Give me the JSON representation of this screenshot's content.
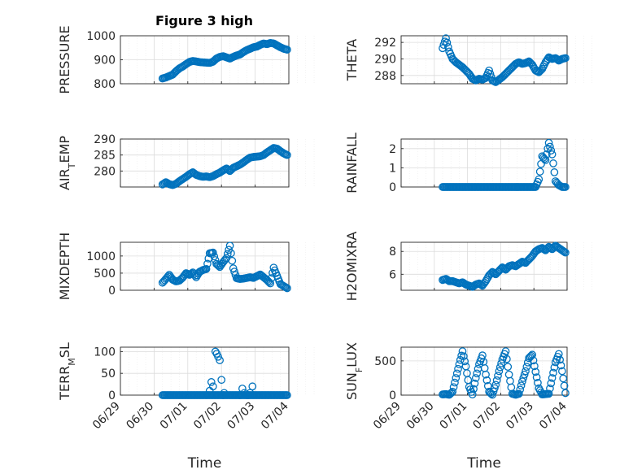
{
  "chart_data": [
    {
      "type": "scatter",
      "title": "Figure 3 high",
      "xlabel": "",
      "ylabel": "PRESSURE",
      "xlim": [
        "06/29",
        "07/04"
      ],
      "ylim": [
        800,
        1000
      ],
      "yticks": [
        "800",
        "900",
        "1000"
      ],
      "xticks": [],
      "grid": true,
      "marker": "circle",
      "color": "#0072BD",
      "x": [
        1.25,
        1.35,
        1.45,
        1.55,
        1.65,
        1.75,
        1.85,
        1.95,
        2.05,
        2.15,
        2.25,
        2.35,
        2.45,
        2.55,
        2.65,
        2.75,
        2.85,
        2.95,
        3.05,
        3.15,
        3.25,
        3.35,
        3.45,
        3.55,
        3.65,
        3.75,
        3.85,
        3.95,
        4.05,
        4.15,
        4.25,
        4.35,
        4.45,
        4.55,
        4.65,
        4.75,
        4.85,
        4.95
      ],
      "y": [
        822,
        826,
        832,
        838,
        852,
        864,
        872,
        882,
        891,
        895,
        893,
        890,
        889,
        888,
        887,
        892,
        905,
        912,
        915,
        910,
        905,
        912,
        918,
        922,
        932,
        940,
        946,
        952,
        955,
        962,
        968,
        965,
        970,
        968,
        960,
        952,
        946,
        942
      ]
    },
    {
      "type": "scatter",
      "title": "",
      "xlabel": "",
      "ylabel": "THETA",
      "xlim": [
        "06/29",
        "07/04"
      ],
      "ylim": [
        287,
        292.8
      ],
      "yticks": [
        "288",
        "290",
        "292"
      ],
      "xticks": [],
      "grid": true,
      "marker": "circle",
      "color": "#0072BD",
      "x": [
        1.25,
        1.35,
        1.45,
        1.55,
        1.65,
        1.75,
        1.85,
        1.95,
        2.05,
        2.15,
        2.25,
        2.35,
        2.45,
        2.55,
        2.65,
        2.75,
        2.85,
        2.95,
        3.05,
        3.15,
        3.25,
        3.35,
        3.45,
        3.55,
        3.65,
        3.75,
        3.85,
        3.95,
        4.05,
        4.15,
        4.25,
        4.35,
        4.45,
        4.55,
        4.65,
        4.75,
        4.85,
        4.95
      ],
      "y": [
        291.3,
        292.5,
        290.9,
        290.0,
        289.6,
        289.3,
        289.0,
        288.6,
        288.2,
        287.6,
        287.4,
        287.6,
        287.5,
        287.7,
        288.6,
        287.4,
        287.2,
        287.5,
        287.8,
        288.2,
        288.6,
        289.0,
        289.4,
        289.6,
        289.4,
        289.5,
        289.7,
        289.3,
        288.6,
        288.4,
        288.8,
        289.6,
        290.2,
        290.0,
        290.1,
        289.8,
        290.0,
        290.1
      ]
    },
    {
      "type": "scatter",
      "title": "",
      "xlabel": "",
      "ylabel": "AIR_TEMP",
      "xlim": [
        "06/29",
        "07/04"
      ],
      "ylim": [
        275,
        290
      ],
      "yticks": [
        "280",
        "285",
        "290"
      ],
      "xticks": [],
      "grid": true,
      "marker": "circle",
      "color": "#0072BD",
      "x": [
        1.25,
        1.35,
        1.45,
        1.55,
        1.65,
        1.75,
        1.85,
        1.95,
        2.05,
        2.15,
        2.25,
        2.35,
        2.45,
        2.55,
        2.65,
        2.75,
        2.85,
        2.95,
        3.05,
        3.15,
        3.25,
        3.35,
        3.45,
        3.55,
        3.65,
        3.75,
        3.85,
        3.95,
        4.05,
        4.15,
        4.25,
        4.35,
        4.45,
        4.55,
        4.65,
        4.75,
        4.85,
        4.95
      ],
      "y": [
        275.8,
        276.5,
        275.9,
        275.6,
        276.0,
        276.8,
        277.5,
        278.2,
        279.0,
        279.6,
        278.8,
        278.4,
        278.2,
        278.3,
        278.1,
        278.4,
        279.0,
        279.5,
        280.2,
        280.8,
        280.0,
        281.0,
        281.5,
        282.0,
        282.7,
        283.5,
        284.2,
        284.4,
        284.5,
        284.6,
        285.0,
        285.8,
        286.5,
        287.2,
        287.0,
        286.2,
        285.5,
        285.0
      ]
    },
    {
      "type": "scatter",
      "title": "",
      "xlabel": "",
      "ylabel": "RAINFALL",
      "xlim": [
        "06/29",
        "07/04"
      ],
      "ylim": [
        0,
        2.5
      ],
      "yticks": [
        "0",
        "1",
        "2"
      ],
      "xticks": [],
      "grid": true,
      "marker": "circle",
      "color": "#0072BD",
      "x": [
        1.25,
        1.35,
        1.45,
        1.55,
        1.65,
        1.75,
        1.85,
        1.95,
        2.05,
        2.15,
        2.25,
        2.35,
        2.45,
        2.55,
        2.65,
        2.75,
        2.85,
        2.95,
        3.05,
        3.15,
        3.25,
        3.35,
        3.45,
        3.55,
        3.65,
        3.75,
        3.85,
        3.95,
        4.05,
        4.15,
        4.25,
        4.35,
        4.45,
        4.55,
        4.65,
        4.75,
        4.85,
        4.95
      ],
      "y": [
        0,
        0,
        0,
        0,
        0,
        0,
        0,
        0,
        0,
        0,
        0,
        0,
        0,
        0,
        0,
        0,
        0,
        0,
        0,
        0,
        0,
        0,
        0,
        0,
        0,
        0,
        0,
        0,
        0,
        0.4,
        1.6,
        1.4,
        2.3,
        1.7,
        0.3,
        0.1,
        0,
        0
      ]
    },
    {
      "type": "scatter",
      "title": "",
      "xlabel": "",
      "ylabel": "MIXDEPTH",
      "xlim": [
        "06/29",
        "07/04"
      ],
      "ylim": [
        0,
        1400
      ],
      "yticks": [
        "0",
        "500",
        "1000"
      ],
      "xticks": [],
      "grid": true,
      "marker": "circle",
      "color": "#0072BD",
      "x": [
        1.25,
        1.35,
        1.45,
        1.55,
        1.65,
        1.75,
        1.85,
        1.95,
        2.05,
        2.15,
        2.25,
        2.35,
        2.45,
        2.55,
        2.65,
        2.75,
        2.85,
        2.95,
        3.05,
        3.15,
        3.25,
        3.35,
        3.45,
        3.55,
        3.65,
        3.75,
        3.85,
        3.95,
        4.05,
        4.15,
        4.25,
        4.35,
        4.45,
        4.55,
        4.65,
        4.75,
        4.85,
        4.95
      ],
      "y": [
        220,
        330,
        450,
        310,
        260,
        280,
        370,
        500,
        450,
        520,
        380,
        540,
        590,
        620,
        1080,
        1100,
        770,
        680,
        820,
        940,
        1300,
        640,
        350,
        330,
        340,
        360,
        380,
        360,
        410,
        460,
        380,
        300,
        200,
        660,
        420,
        180,
        120,
        60
      ]
    },
    {
      "type": "scatter",
      "title": "",
      "xlabel": "",
      "ylabel": "H2OMIXRA",
      "xlim": [
        "06/29",
        "07/04"
      ],
      "ylim": [
        4.6,
        8.8
      ],
      "yticks": [
        "6",
        "8"
      ],
      "xticks": [],
      "grid": true,
      "marker": "circle",
      "color": "#0072BD",
      "x": [
        1.25,
        1.35,
        1.45,
        1.55,
        1.65,
        1.75,
        1.85,
        1.95,
        2.05,
        2.15,
        2.25,
        2.35,
        2.45,
        2.55,
        2.65,
        2.75,
        2.85,
        2.95,
        3.05,
        3.15,
        3.25,
        3.35,
        3.45,
        3.55,
        3.65,
        3.75,
        3.85,
        3.95,
        4.05,
        4.15,
        4.25,
        4.35,
        4.45,
        4.55,
        4.65,
        4.75,
        4.85,
        4.95
      ],
      "y": [
        5.5,
        5.6,
        5.4,
        5.4,
        5.3,
        5.2,
        5.3,
        5.1,
        5.0,
        4.9,
        5.1,
        5.2,
        5.0,
        5.4,
        5.9,
        6.2,
        6.0,
        6.3,
        6.6,
        6.4,
        6.7,
        6.8,
        6.7,
        6.9,
        7.1,
        7.0,
        7.3,
        7.6,
        8.0,
        8.2,
        8.3,
        8.1,
        8.4,
        8.2,
        8.5,
        8.3,
        8.1,
        7.9
      ]
    },
    {
      "type": "scatter",
      "title": "",
      "xlabel": "Time",
      "ylabel": "TERR_MSL",
      "xlim": [
        "06/29",
        "07/04"
      ],
      "ylim": [
        0,
        110
      ],
      "yticks": [
        "0",
        "50",
        "100"
      ],
      "xticks": [
        "06/29",
        "06/30",
        "07/01",
        "07/02",
        "07/03",
        "07/04"
      ],
      "grid": true,
      "marker": "circle",
      "color": "#0072BD",
      "x": [
        1.25,
        1.35,
        1.45,
        1.55,
        1.65,
        1.75,
        1.85,
        1.95,
        2.05,
        2.15,
        2.25,
        2.35,
        2.45,
        2.55,
        2.65,
        2.75,
        2.85,
        2.95,
        3.05,
        3.15,
        3.25,
        3.35,
        3.45,
        3.55,
        3.65,
        3.75,
        3.85,
        3.95,
        4.05,
        4.15,
        4.25,
        4.35,
        4.45,
        4.55,
        4.65,
        4.75,
        4.85,
        4.95
      ],
      "y": [
        0,
        0,
        0,
        0,
        0,
        0,
        0,
        0,
        0,
        0,
        0,
        0,
        0,
        0,
        0,
        0,
        0,
        0,
        0,
        0,
        0,
        0,
        0,
        0,
        0,
        0,
        0,
        0,
        0,
        0,
        0,
        0,
        0,
        0,
        0,
        0,
        0,
        0
      ]
    },
    {
      "type": "scatter",
      "title": "",
      "xlabel": "Time",
      "ylabel": "SUN_FLUX",
      "xlim": [
        "06/29",
        "07/04"
      ],
      "ylim": [
        0,
        700
      ],
      "yticks": [
        "0",
        "500"
      ],
      "xticks": [
        "06/29",
        "06/30",
        "07/01",
        "07/02",
        "07/03",
        "07/04"
      ],
      "grid": true,
      "marker": "circle",
      "color": "#0072BD",
      "x": [
        1.25,
        1.35,
        1.45,
        1.55,
        1.65,
        1.75,
        1.85,
        1.95,
        2.05,
        2.15,
        2.25,
        2.35,
        2.45,
        2.55,
        2.65,
        2.75,
        2.85,
        2.95,
        3.05,
        3.15,
        3.25,
        3.35,
        3.45,
        3.55,
        3.65,
        3.75,
        3.85,
        3.95,
        4.05,
        4.15,
        4.25,
        4.35,
        4.45,
        4.55,
        4.65,
        4.75,
        4.85,
        4.95
      ],
      "y": [
        10,
        15,
        5,
        50,
        250,
        450,
        640,
        420,
        120,
        10,
        250,
        450,
        580,
        300,
        50,
        5,
        150,
        350,
        520,
        640,
        300,
        20,
        5,
        20,
        200,
        350,
        540,
        590,
        340,
        100,
        10,
        15,
        20,
        250,
        480,
        600,
        350,
        30
      ]
    }
  ],
  "extra_points": {
    "terr": [
      [
        2.65,
        10
      ],
      [
        2.7,
        30
      ],
      [
        2.75,
        20
      ],
      [
        2.82,
        100
      ],
      [
        2.86,
        95
      ],
      [
        2.9,
        88
      ],
      [
        2.95,
        80
      ],
      [
        3.0,
        35
      ],
      [
        3.05,
        0
      ],
      [
        3.08,
        5
      ],
      [
        3.55,
        0
      ],
      [
        3.62,
        15
      ],
      [
        3.68,
        5
      ],
      [
        3.75,
        0
      ],
      [
        3.8,
        0
      ],
      [
        3.85,
        5
      ],
      [
        3.92,
        20
      ]
    ]
  }
}
